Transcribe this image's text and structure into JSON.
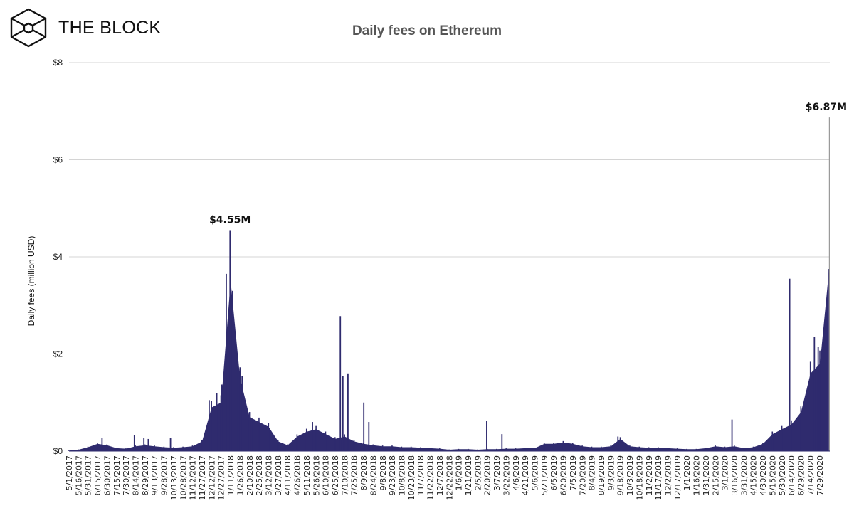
{
  "brand": {
    "name": "THE BLOCK",
    "logo_icon": "cube-hexagon-icon"
  },
  "chart_data": {
    "type": "bar",
    "title": "Daily fees on Ethereum",
    "xlabel": "",
    "ylabel": "Daily fees (million USD)",
    "ylim": [
      0,
      8
    ],
    "yticks": [
      0,
      2,
      4,
      6,
      8
    ],
    "ytick_labels": [
      "$0",
      "$2",
      "$4",
      "$6",
      "$8"
    ],
    "grid": "horizontal",
    "legend": "none",
    "colors": {
      "bars": "#2f2b6e",
      "grid": "#d4d4d4",
      "peak_line": "#9a9a9a"
    },
    "categories": [
      "5/1/2017",
      "5/16/2017",
      "5/31/2017",
      "6/15/2017",
      "6/30/2017",
      "7/15/2017",
      "7/30/2017",
      "8/14/2017",
      "8/29/2017",
      "9/13/2017",
      "9/28/2017",
      "10/13/2017",
      "10/28/2017",
      "11/12/2017",
      "11/27/2017",
      "12/12/2017",
      "12/27/2017",
      "1/11/2018",
      "1/26/2018",
      "2/10/2018",
      "2/25/2018",
      "3/12/2018",
      "3/27/2018",
      "4/11/2018",
      "4/26/2018",
      "5/11/2018",
      "5/26/2018",
      "6/10/2018",
      "6/25/2018",
      "7/10/2018",
      "7/25/2018",
      "8/9/2018",
      "8/24/2018",
      "9/8/2018",
      "9/23/2018",
      "10/8/2018",
      "10/23/2018",
      "11/7/2018",
      "11/22/2018",
      "12/7/2018",
      "12/22/2018",
      "1/6/2019",
      "1/21/2019",
      "2/5/2019",
      "2/20/2019",
      "3/7/2019",
      "3/22/2019",
      "4/6/2019",
      "4/21/2019",
      "5/6/2019",
      "5/21/2019",
      "6/5/2019",
      "6/20/2019",
      "7/5/2019",
      "7/20/2019",
      "8/4/2019",
      "8/19/2019",
      "9/3/2019",
      "9/18/2019",
      "10/3/2019",
      "10/18/2019",
      "11/2/2019",
      "11/17/2019",
      "12/2/2019",
      "12/17/2019",
      "1/1/2020",
      "1/16/2020",
      "1/31/2020",
      "2/15/2020",
      "3/1/2020",
      "3/16/2020",
      "3/31/2020",
      "4/15/2020",
      "4/30/2020",
      "5/15/2020",
      "5/30/2020",
      "6/14/2020",
      "6/29/2020",
      "7/14/2020",
      "7/29/2020"
    ],
    "values": [
      0.01,
      0.03,
      0.08,
      0.15,
      0.12,
      0.06,
      0.05,
      0.1,
      0.12,
      0.1,
      0.08,
      0.07,
      0.08,
      0.1,
      0.2,
      0.9,
      1.0,
      3.5,
      1.5,
      0.7,
      0.6,
      0.5,
      0.2,
      0.12,
      0.3,
      0.4,
      0.45,
      0.35,
      0.25,
      0.3,
      0.2,
      0.15,
      0.12,
      0.1,
      0.1,
      0.08,
      0.08,
      0.07,
      0.06,
      0.05,
      0.03,
      0.04,
      0.04,
      0.03,
      0.04,
      0.04,
      0.05,
      0.05,
      0.06,
      0.06,
      0.15,
      0.15,
      0.18,
      0.15,
      0.1,
      0.08,
      0.08,
      0.1,
      0.25,
      0.1,
      0.08,
      0.07,
      0.07,
      0.06,
      0.05,
      0.04,
      0.04,
      0.06,
      0.1,
      0.08,
      0.1,
      0.06,
      0.08,
      0.15,
      0.35,
      0.45,
      0.55,
      0.8,
      1.6,
      1.8
    ],
    "last_point": {
      "x": "8/12/2020",
      "y": 3.7
    },
    "peaks": [
      {
        "x": "6/22/2017",
        "y": 0.27
      },
      {
        "x": "8/12/2017",
        "y": 0.33
      },
      {
        "x": "8/27/2017",
        "y": 0.27
      },
      {
        "x": "9/3/2017",
        "y": 0.25
      },
      {
        "x": "10/8/2017",
        "y": 0.27
      },
      {
        "x": "12/8/2017",
        "y": 1.05
      },
      {
        "x": "12/20/2017",
        "y": 1.2
      },
      {
        "x": "12/28/2017",
        "y": 1.37
      },
      {
        "x": "1/4/2018",
        "y": 3.65
      },
      {
        "x": "1/10/2018",
        "y": 4.55
      },
      {
        "x": "1/14/2018",
        "y": 3.3
      },
      {
        "x": "1/20/2018",
        "y": 2.0
      },
      {
        "x": "1/29/2018",
        "y": 1.55
      },
      {
        "x": "2/15/2018",
        "y": 0.65
      },
      {
        "x": "5/20/2018",
        "y": 0.6
      },
      {
        "x": "7/3/2018",
        "y": 2.78
      },
      {
        "x": "7/7/2018",
        "y": 1.55
      },
      {
        "x": "7/15/2018",
        "y": 1.6
      },
      {
        "x": "8/9/2018",
        "y": 1.0
      },
      {
        "x": "8/17/2018",
        "y": 0.6
      },
      {
        "x": "2/19/2019",
        "y": 0.63
      },
      {
        "x": "3/15/2019",
        "y": 0.35
      },
      {
        "x": "9/14/2019",
        "y": 0.3
      },
      {
        "x": "3/12/2020",
        "y": 0.65
      },
      {
        "x": "6/11/2020",
        "y": 3.55
      },
      {
        "x": "7/20/2020",
        "y": 2.35
      },
      {
        "x": "7/26/2020",
        "y": 2.15
      },
      {
        "x": "8/11/2020",
        "y": 3.75
      },
      {
        "x": "8/13/2020",
        "y": 6.87
      }
    ],
    "annotations": [
      {
        "x": "1/10/2018",
        "y": 4.55,
        "text": "$4.55M"
      },
      {
        "x": "8/13/2020",
        "y": 6.87,
        "text": "$6.87M"
      }
    ]
  }
}
